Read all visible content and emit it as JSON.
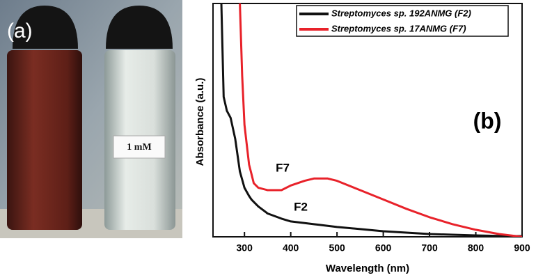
{
  "panel_a": {
    "label": "(a)",
    "vial_label": "1 mM"
  },
  "chart_data": {
    "type": "line",
    "panel_label": "(b)",
    "x_label": "Wavelength (nm)",
    "y_label": "Absorbance (a.u.)",
    "x": [
      250,
      255,
      262,
      270,
      280,
      290,
      295,
      300,
      310,
      315,
      320,
      330,
      350,
      380,
      400,
      430,
      450,
      460,
      480,
      500,
      550,
      600,
      650,
      700,
      750,
      800,
      850,
      900
    ],
    "series": [
      {
        "name": "Streptomyces sp. 192ANMG (F2)",
        "color": "#111111",
        "values": [
          1.0,
          0.6,
          0.54,
          0.51,
          0.42,
          0.28,
          0.245,
          0.21,
          0.175,
          0.16,
          0.15,
          0.13,
          0.1,
          0.078,
          0.066,
          0.059,
          0.054,
          0.052,
          0.047,
          0.042,
          0.033,
          0.024,
          0.018,
          0.012,
          0.009,
          0.006,
          0.004,
          0.003
        ]
      },
      {
        "name": "Streptomyces sp. 17ANMG (F7)",
        "color": "#e8222a",
        "values": [
          null,
          null,
          null,
          null,
          null,
          1.0,
          0.69,
          0.48,
          0.31,
          0.27,
          0.23,
          0.21,
          0.2,
          0.2,
          0.22,
          0.24,
          0.25,
          0.25,
          0.25,
          0.24,
          0.2,
          0.16,
          0.12,
          0.084,
          0.054,
          0.03,
          0.012,
          0.0
        ]
      }
    ],
    "annotations": [
      "F7",
      "F2"
    ],
    "xlim": [
      232,
      900
    ],
    "ylim": [
      0,
      1
    ],
    "xticks": [
      300,
      400,
      500,
      600,
      700,
      800,
      900
    ]
  }
}
